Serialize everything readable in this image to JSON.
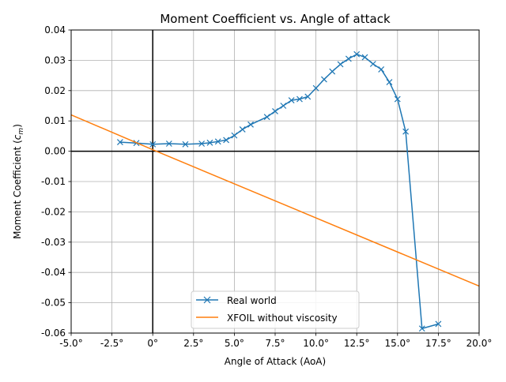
{
  "chart_data": {
    "type": "line",
    "title": "Moment Coefficient vs. Angle of attack",
    "xlabel": "Angle of Attack (AoA)",
    "ylabel_main": "Moment Coefficient (",
    "ylabel_sym": "c",
    "ylabel_sub": "m",
    "ylabel_end": ")",
    "xlim": [
      -5,
      20
    ],
    "ylim": [
      -0.06,
      0.04
    ],
    "xticks": [
      -5,
      -2.5,
      0,
      2.5,
      5,
      7.5,
      10,
      12.5,
      15,
      17.5,
      20
    ],
    "xtick_labels": [
      "-5.0°",
      "-2.5°",
      "0°",
      "2.5°",
      "5.0°",
      "7.5°",
      "10.0°",
      "12.5°",
      "15.0°",
      "17.5°",
      "20.0°"
    ],
    "yticks": [
      -0.06,
      -0.05,
      -0.04,
      -0.03,
      -0.02,
      -0.01,
      0.0,
      0.01,
      0.02,
      0.03,
      0.04
    ],
    "ytick_labels": [
      "-0.06",
      "-0.05",
      "-0.04",
      "-0.03",
      "-0.02",
      "-0.01",
      "0.00",
      "0.01",
      "0.02",
      "0.03",
      "0.04"
    ],
    "grid": true,
    "legend_position": "lower center",
    "series": [
      {
        "name": "Real world",
        "color": "#1f77b4",
        "marker": "x",
        "x": [
          -2,
          -1,
          0,
          1,
          2,
          3,
          3.5,
          4,
          4.5,
          5,
          5.5,
          6,
          7,
          7.5,
          8,
          8.5,
          9,
          9.5,
          10,
          10.5,
          11,
          11.5,
          12,
          12.5,
          13,
          13.5,
          14,
          14.5,
          15,
          15.5,
          16.5,
          17.5
        ],
        "y": [
          0.003,
          0.0027,
          0.0023,
          0.0025,
          0.0023,
          0.0025,
          0.0028,
          0.0032,
          0.0037,
          0.0052,
          0.0072,
          0.0088,
          0.0113,
          0.0132,
          0.015,
          0.0168,
          0.0172,
          0.018,
          0.0208,
          0.0237,
          0.0263,
          0.0287,
          0.0305,
          0.032,
          0.031,
          0.0288,
          0.027,
          0.0228,
          0.0172,
          0.0065,
          -0.0585,
          -0.057
        ]
      },
      {
        "name": "XFOIL without viscosity",
        "color": "#ff7f0e",
        "marker": "none",
        "x": [
          -5,
          0,
          20
        ],
        "y": [
          0.012,
          0.0005,
          -0.0445
        ]
      }
    ]
  }
}
